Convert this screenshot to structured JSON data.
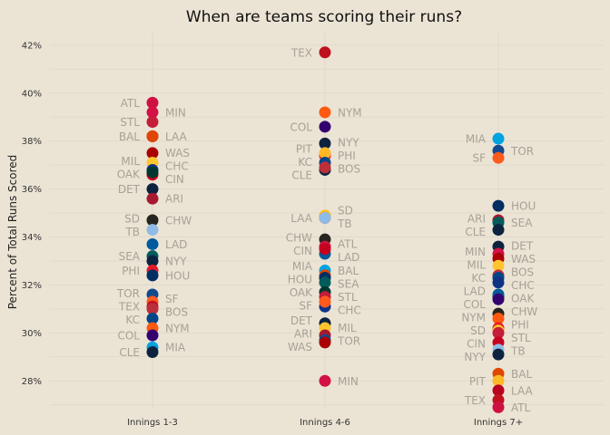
{
  "chart_data": {
    "type": "scatter",
    "title": "When are teams scoring their runs?",
    "xlabel": "",
    "ylabel": "Percent of Total Runs Scored",
    "categories": [
      "Innings 1-3",
      "Innings 4-6",
      "Innings 7+"
    ],
    "ylim": [
      26.8,
      42.6
    ],
    "yticks": [
      28,
      30,
      32,
      34,
      36,
      38,
      40,
      42
    ],
    "ytick_labels": [
      "28%",
      "30%",
      "32%",
      "34%",
      "36%",
      "38%",
      "40%",
      "42%"
    ],
    "grid": true,
    "legend": "none",
    "team_colors": {
      "ATL": "#ce1141",
      "MIN": "#d31145",
      "STL": "#c41e3a",
      "LAA": "#ba0021",
      "BAL": "#df4601",
      "WAS": "#ab0003",
      "MIL": "#ffc52f",
      "CHC": "#0e3386",
      "CIN": "#c6011f",
      "OAK": "#003831",
      "DET": "#0c2340",
      "ARI": "#a71930",
      "SD": "#ffc425",
      "CHW": "#27251f",
      "TB": "#8fbce6",
      "LAD": "#005a9c",
      "SEA": "#005c5c",
      "NYY": "#0c2340",
      "PHI": "#e81828",
      "HOU": "#002d62",
      "TOR": "#134a8e",
      "SF": "#fd5a1e",
      "TEX": "#c0111f",
      "BOS": "#bd3039",
      "KC": "#004687",
      "NYM": "#ff5910",
      "COL": "#33006f",
      "MIA": "#00a3e0",
      "CLE": "#0c2340",
      "PIT": "#fdb827"
    },
    "series": [
      {
        "category": "Innings 1-3",
        "points": [
          {
            "team": "ATL",
            "value": 39.6
          },
          {
            "team": "MIN",
            "value": 39.2
          },
          {
            "team": "STL",
            "value": 38.8
          },
          {
            "team": "LAA",
            "value": 38.2
          },
          {
            "team": "BAL",
            "value": 38.2
          },
          {
            "team": "WAS",
            "value": 37.5
          },
          {
            "team": "MIL",
            "value": 37.1
          },
          {
            "team": "CHC",
            "value": 36.8
          },
          {
            "team": "CIN",
            "value": 36.6
          },
          {
            "team": "OAK",
            "value": 36.7
          },
          {
            "team": "DET",
            "value": 36.0
          },
          {
            "team": "ARI",
            "value": 35.6
          },
          {
            "team": "SD",
            "value": 34.7
          },
          {
            "team": "CHW",
            "value": 34.7
          },
          {
            "team": "TB",
            "value": 34.3
          },
          {
            "team": "LAD",
            "value": 33.7
          },
          {
            "team": "SEA",
            "value": 33.2
          },
          {
            "team": "NYY",
            "value": 33.0
          },
          {
            "team": "PHI",
            "value": 32.6
          },
          {
            "team": "HOU",
            "value": 32.4
          },
          {
            "team": "TOR",
            "value": 31.6
          },
          {
            "team": "SF",
            "value": 31.3
          },
          {
            "team": "TEX",
            "value": 31.1
          },
          {
            "team": "BOS",
            "value": 31.0
          },
          {
            "team": "KC",
            "value": 30.6
          },
          {
            "team": "NYM",
            "value": 30.2
          },
          {
            "team": "COL",
            "value": 29.9
          },
          {
            "team": "MIA",
            "value": 29.4
          },
          {
            "team": "CLE",
            "value": 29.2
          }
        ]
      },
      {
        "category": "Innings 4-6",
        "points": [
          {
            "team": "TEX",
            "value": 41.7
          },
          {
            "team": "NYM",
            "value": 39.2
          },
          {
            "team": "COL",
            "value": 38.6
          },
          {
            "team": "NYY",
            "value": 37.9
          },
          {
            "team": "PHI",
            "value": 37.4
          },
          {
            "team": "PIT",
            "value": 37.5
          },
          {
            "team": "KC",
            "value": 37.1
          },
          {
            "team": "CLE",
            "value": 36.8
          },
          {
            "team": "BOS",
            "value": 36.9
          },
          {
            "team": "SD",
            "value": 34.9
          },
          {
            "team": "LAA",
            "value": 34.8
          },
          {
            "team": "TB",
            "value": 34.8
          },
          {
            "team": "CHW",
            "value": 33.9
          },
          {
            "team": "ATL",
            "value": 33.6
          },
          {
            "team": "LAD",
            "value": 33.3
          },
          {
            "team": "CIN",
            "value": 33.5
          },
          {
            "team": "MIA",
            "value": 32.6
          },
          {
            "team": "BAL",
            "value": 32.4
          },
          {
            "team": "HOU",
            "value": 32.3
          },
          {
            "team": "SEA",
            "value": 32.1
          },
          {
            "team": "OAK",
            "value": 31.7
          },
          {
            "team": "STL",
            "value": 31.5
          },
          {
            "team": "CHC",
            "value": 31.1
          },
          {
            "team": "SF",
            "value": 31.3
          },
          {
            "team": "DET",
            "value": 30.4
          },
          {
            "team": "MIL",
            "value": 30.2
          },
          {
            "team": "ARI",
            "value": 29.9
          },
          {
            "team": "TOR",
            "value": 29.7
          },
          {
            "team": "WAS",
            "value": 29.6
          },
          {
            "team": "MIN",
            "value": 28.0
          }
        ]
      },
      {
        "category": "Innings 7+",
        "points": [
          {
            "team": "MIA",
            "value": 38.1
          },
          {
            "team": "TOR",
            "value": 37.6
          },
          {
            "team": "SF",
            "value": 37.3
          },
          {
            "team": "HOU",
            "value": 35.3
          },
          {
            "team": "ARI",
            "value": 34.7
          },
          {
            "team": "SEA",
            "value": 34.6
          },
          {
            "team": "DET",
            "value": 33.6
          },
          {
            "team": "CLE",
            "value": 34.3
          },
          {
            "team": "MIN",
            "value": 33.3
          },
          {
            "team": "WAS",
            "value": 33.1
          },
          {
            "team": "MIL",
            "value": 32.8
          },
          {
            "team": "BOS",
            "value": 32.4
          },
          {
            "team": "KC",
            "value": 32.3
          },
          {
            "team": "CHC",
            "value": 32.1
          },
          {
            "team": "OAK",
            "value": 31.5
          },
          {
            "team": "LAD",
            "value": 31.6
          },
          {
            "team": "COL",
            "value": 31.4
          },
          {
            "team": "CHW",
            "value": 30.8
          },
          {
            "team": "NYM",
            "value": 30.6
          },
          {
            "team": "PHI",
            "value": 30.2
          },
          {
            "team": "SD",
            "value": 30.1
          },
          {
            "team": "STL",
            "value": 30.0
          },
          {
            "team": "CIN",
            "value": 29.6
          },
          {
            "team": "TB",
            "value": 29.3
          },
          {
            "team": "NYY",
            "value": 29.1
          },
          {
            "team": "BAL",
            "value": 28.3
          },
          {
            "team": "PIT",
            "value": 28.0
          },
          {
            "team": "LAA",
            "value": 27.6
          },
          {
            "team": "TEX",
            "value": 27.2
          },
          {
            "team": "ATL",
            "value": 26.9
          }
        ]
      }
    ]
  }
}
